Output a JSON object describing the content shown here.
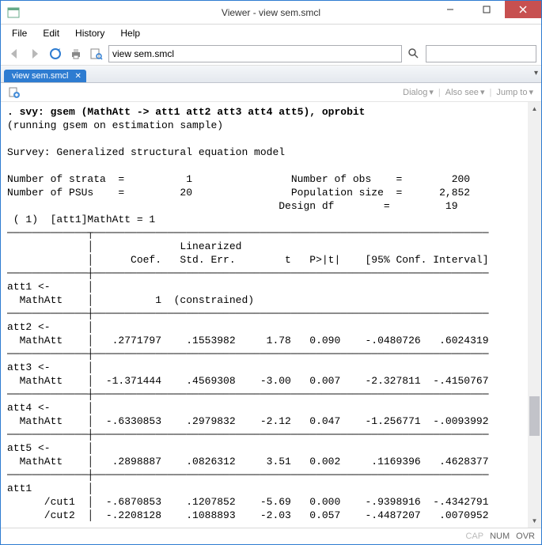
{
  "window": {
    "title": "Viewer - view sem.smcl"
  },
  "menu": {
    "file": "File",
    "edit": "Edit",
    "history": "History",
    "help": "Help"
  },
  "address": {
    "value": "view sem.smcl"
  },
  "tab": {
    "label": "view sem.smcl"
  },
  "sublinks": {
    "dialog": "Dialog",
    "alsosee": "Also see",
    "jumpto": "Jump to"
  },
  "status": {
    "cap": "CAP",
    "num": "NUM",
    "ovr": "OVR"
  },
  "out": {
    "cmd": ". svy: gsem (MathAtt -> att1 att2 att3 att4 att5), oprobit",
    "note": "(running gsem on estimation sample)",
    "title": "Survey: Generalized structural equation model",
    "strata_lbl": "Number of strata",
    "strata_val": "1",
    "psu_lbl": "Number of PSUs",
    "psu_val": "20",
    "nobs_lbl": "Number of obs",
    "nobs_val": "200",
    "pop_lbl": "Population size",
    "pop_val": "2,852",
    "df_lbl": "Design df",
    "df_val": "19",
    "constraint": " ( 1)  [att1]MathAtt = 1",
    "hdr_lin": "Linearized",
    "hdr_coef": "Coef.",
    "hdr_se": "Std. Err.",
    "hdr_t": "t",
    "hdr_p": "P>|t|",
    "hdr_ci": "[95% Conf. Interval]",
    "rows": {
      "att1_hdr": "att1 <-",
      "att1_ma": "  MathAtt ",
      "att1_c": "1",
      "att1_se": "(constrained)",
      "att2_hdr": "att2 <-",
      "att2_ma": "  MathAtt ",
      "att2_c": ".2771797",
      "att2_s": ".1553982",
      "att2_t": "1.78",
      "att2_p": "0.090",
      "att2_l": "-.0480726",
      "att2_u": ".6024319",
      "att3_hdr": "att3 <-",
      "att3_ma": "  MathAtt ",
      "att3_c": "-1.371444",
      "att3_s": ".4569308",
      "att3_t": "-3.00",
      "att3_p": "0.007",
      "att3_l": "-2.327811",
      "att3_u": "-.4150767",
      "att4_hdr": "att4 <-",
      "att4_ma": "  MathAtt ",
      "att4_c": "-.6330853",
      "att4_s": ".2979832",
      "att4_t": "-2.12",
      "att4_p": "0.047",
      "att4_l": "-1.256771",
      "att4_u": "-.0093992",
      "att5_hdr": "att5 <-",
      "att5_ma": "  MathAtt ",
      "att5_c": ".2898887",
      "att5_s": ".0826312",
      "att5_t": "3.51",
      "att5_p": "0.002",
      "att5_l": ".1169396",
      "att5_u": ".4628377",
      "att1cut_hdr": "att1",
      "cut1_lbl": "      /cut1",
      "cut1_c": "-.6870853",
      "cut1_s": ".1207852",
      "cut1_t": "-5.69",
      "cut1_p": "0.000",
      "cut1_l": "-.9398916",
      "cut1_u": "-.4342791",
      "cut2_lbl": "      /cut2",
      "cut2_c": "-.2208128",
      "cut2_s": ".1088893",
      "cut2_t": "-2.03",
      "cut2_p": "0.057",
      "cut2_l": "-.4487207",
      "cut2_u": ".0070952"
    }
  }
}
